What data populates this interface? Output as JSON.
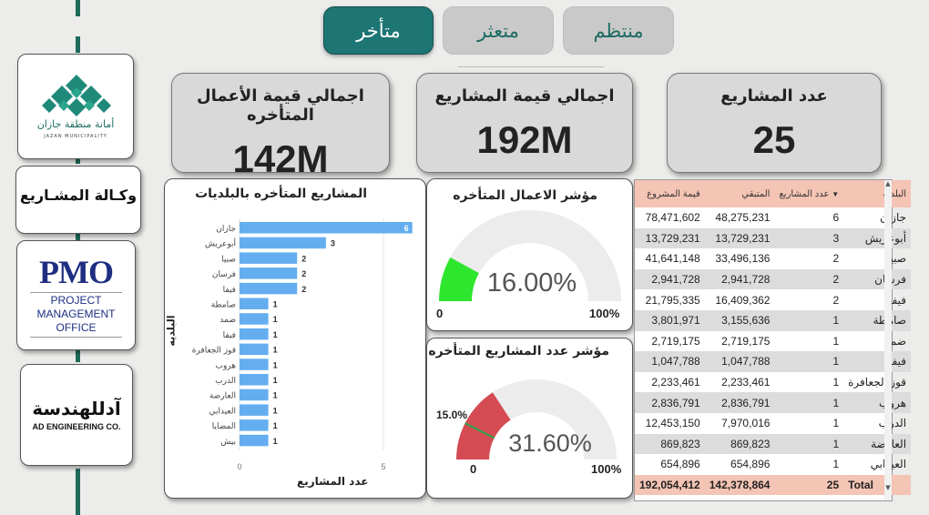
{
  "tabs": [
    {
      "label": "متأخر",
      "active": true
    },
    {
      "label": "متعثر",
      "active": false
    },
    {
      "label": "منتظم",
      "active": false
    }
  ],
  "logos": {
    "jazan": {
      "arabic": "أمانة منطقة جازان",
      "english": "JAZAN MUNICIPALITY"
    },
    "agency": {
      "text": "وكـالة المشـاريع"
    },
    "pmo": {
      "abbr": "PMO",
      "line1": "PROJECT",
      "line2": "MANAGEMENT",
      "line3": "OFFICE"
    },
    "ad": {
      "arabic": "آدللهندسة",
      "english": "AD ENGINEERING CO."
    }
  },
  "kpis": {
    "late_value": {
      "title": "اجمالي قيمة الأعمال المتأخره",
      "value": "142M"
    },
    "total_value": {
      "title": "اجمالي قيمة المشاريع",
      "value": "192M"
    },
    "count": {
      "title": "عدد المشاريع",
      "value": "25"
    }
  },
  "bar_panel": {
    "title": "المشاريع المتأخره بالبلديات",
    "ylabel": "البلديه",
    "xlabel": "عدد المشاريع"
  },
  "gauge1": {
    "title": "مؤشر الاعمال المتأخره",
    "value_label": "16.00%",
    "min_label": "0",
    "max_label": "100%",
    "value_pct": 16,
    "fill": "#2ee62e"
  },
  "gauge2": {
    "title": "مؤشر عدد المشاريع المتأخره",
    "value_label": "31.60%",
    "min_label": "0",
    "max_label": "100%",
    "target_label": "15.0%",
    "value_pct": 31.6,
    "target_pct": 15,
    "fill": "#d54b53"
  },
  "table": {
    "headers": {
      "name": "البلدية",
      "count": "عدد المشاريع",
      "remaining": "المتبقي",
      "value": "قيمة المشروع"
    },
    "rows": [
      {
        "name": "جازان",
        "count": "6",
        "remaining": "48,275,231",
        "value": "78,471,602"
      },
      {
        "name": "أبوعريش",
        "count": "3",
        "remaining": "13,729,231",
        "value": "13,729,231"
      },
      {
        "name": "صبيا",
        "count": "2",
        "remaining": "33,496,136",
        "value": "41,641,148"
      },
      {
        "name": "فرسان",
        "count": "2",
        "remaining": "2,941,728",
        "value": "2,941,728"
      },
      {
        "name": "فيفا",
        "count": "2",
        "remaining": "16,409,362",
        "value": "21,795,335"
      },
      {
        "name": "صامطة",
        "count": "1",
        "remaining": "3,155,636",
        "value": "3,801,971"
      },
      {
        "name": "ضمد",
        "count": "1",
        "remaining": "2,719,175",
        "value": "2,719,175"
      },
      {
        "name": "فيفا",
        "count": "1",
        "remaining": "1,047,788",
        "value": "1,047,788"
      },
      {
        "name": "قوز الجعافرة",
        "count": "1",
        "remaining": "2,233,461",
        "value": "2,233,461"
      },
      {
        "name": "هروب",
        "count": "1",
        "remaining": "2,836,791",
        "value": "2,836,791"
      },
      {
        "name": "الدرب",
        "count": "1",
        "remaining": "7,970,016",
        "value": "12,453,150"
      },
      {
        "name": "العارضة",
        "count": "1",
        "remaining": "869,823",
        "value": "869,823"
      },
      {
        "name": "العيدابي",
        "count": "1",
        "remaining": "654,896",
        "value": "654,896"
      }
    ],
    "total": {
      "label": "Total",
      "count": "25",
      "remaining": "142,378,864",
      "value": "192,054,412"
    }
  },
  "colors": {
    "accent": "#1e7674",
    "bar": "#64aef0",
    "bar_highlight": "#64aef0",
    "header": "#f4c4b4"
  },
  "chart_data": {
    "type": "bar",
    "orientation": "horizontal",
    "title": "المشاريع المتأخره بالبلديات",
    "xlabel": "عدد المشاريع",
    "ylabel": "البلديه",
    "categories": [
      "جازان",
      "أبوعريش",
      "صبيا",
      "فرسان",
      "فيفا",
      "صامطة",
      "ضمد",
      "فيفا",
      "قوز الجعافرة",
      "هروب",
      "الدرب",
      "العارضة",
      "العيدابي",
      "المضايا",
      "بيش"
    ],
    "values": [
      6,
      3,
      2,
      2,
      2,
      1,
      1,
      1,
      1,
      1,
      1,
      1,
      1,
      1,
      1
    ],
    "xticks": [
      "0",
      "5"
    ],
    "xlim": [
      0,
      6.2
    ]
  }
}
